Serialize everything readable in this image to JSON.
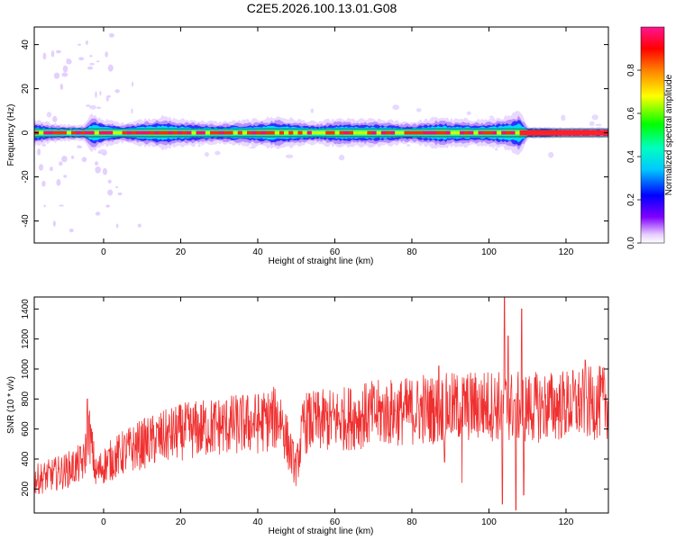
{
  "title": "C2E5.2026.100.13.01.G08",
  "chart_data": [
    {
      "type": "heatmap",
      "xlabel": "Height of straight line (km)",
      "ylabel": "Frequency (Hz)",
      "xlim": [
        -18,
        131
      ],
      "ylim": [
        -50,
        48
      ],
      "xticks": [
        0,
        20,
        40,
        60,
        80,
        100,
        120
      ],
      "yticks": [
        -40,
        -20,
        0,
        20,
        40
      ],
      "colorbar": {
        "label": "Normalized spectral amplitude",
        "range": [
          0,
          1
        ],
        "ticks": [
          0.0,
          0.2,
          0.4,
          0.6,
          0.8
        ],
        "colormap": "rainbow (magenta-blue-cyan-green-yellow-red-pink)"
      },
      "ridge_frequency_hz": 0,
      "ridge_x_range": [
        -18,
        131
      ],
      "ridge_peak_amplitude": 1.0,
      "ridge_core_amplitude": 0.6,
      "ridge_x": [
        -18,
        -15,
        -10,
        -5,
        -3,
        0,
        5,
        10,
        15,
        20,
        30,
        40,
        45,
        50,
        55,
        60,
        70,
        80,
        88,
        90,
        95,
        100,
        105,
        108,
        110,
        120,
        131
      ],
      "ridge_halfwidth_hz": [
        2.5,
        2.0,
        1.5,
        1.5,
        3.5,
        2.5,
        1.8,
        2.5,
        3.0,
        2.5,
        2.0,
        2.5,
        3.0,
        2.5,
        2.0,
        2.5,
        2.5,
        2.0,
        3.0,
        2.5,
        2.5,
        2.5,
        3.0,
        4.0,
        1.2,
        1.0,
        1.0
      ],
      "scatter_noise_region_km": [
        -18,
        10
      ],
      "grid": false
    },
    {
      "type": "line",
      "xlabel": "Height of straight line (km)",
      "ylabel": "SNR (10 * v/v)",
      "xlim": [
        -18,
        131
      ],
      "ylim": [
        40,
        1480
      ],
      "xticks": [
        0,
        20,
        40,
        60,
        80,
        100,
        120
      ],
      "yticks": [
        200,
        400,
        600,
        800,
        1000,
        1200,
        1400
      ],
      "color": "#f03030",
      "grid": false,
      "trend_x": [
        -18,
        -10,
        -5,
        -4,
        -2,
        0,
        5,
        10,
        20,
        30,
        40,
        46,
        48,
        50,
        52,
        60,
        70,
        80,
        90,
        100,
        110,
        120,
        131
      ],
      "trend_y": [
        260,
        320,
        380,
        620,
        300,
        360,
        440,
        500,
        580,
        620,
        640,
        680,
        480,
        330,
        640,
        660,
        700,
        720,
        740,
        760,
        740,
        760,
        780
      ],
      "spikes": [
        {
          "x": -4.2,
          "y": 800
        },
        {
          "x": 83,
          "y": 960
        },
        {
          "x": 87,
          "y": 1020
        },
        {
          "x": 88.5,
          "y": 380
        },
        {
          "x": 93,
          "y": 240
        },
        {
          "x": 103.5,
          "y": 100
        },
        {
          "x": 104,
          "y": 1480
        },
        {
          "x": 105,
          "y": 1220
        },
        {
          "x": 107,
          "y": 60
        },
        {
          "x": 108.5,
          "y": 1400
        },
        {
          "x": 109,
          "y": 160
        },
        {
          "x": 125,
          "y": 1060
        }
      ]
    }
  ]
}
